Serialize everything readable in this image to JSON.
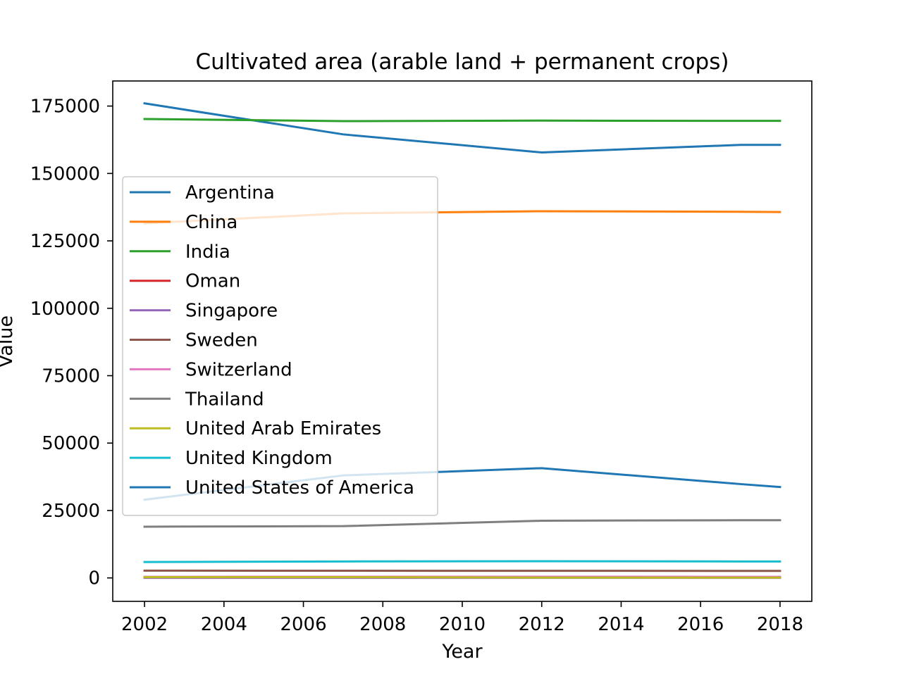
{
  "chart_data": {
    "type": "line",
    "title": "Cultivated area (arable land + permanent crops)",
    "xlabel": "Year",
    "ylabel": "Value",
    "xlim": [
      2001.2,
      2018.8
    ],
    "ylim": [
      -8700,
      184300
    ],
    "xticks": [
      2002,
      2004,
      2006,
      2008,
      2010,
      2012,
      2014,
      2016,
      2018
    ],
    "yticks": [
      0,
      25000,
      50000,
      75000,
      100000,
      125000,
      150000,
      175000
    ],
    "x": [
      2002,
      2007,
      2012,
      2017,
      2018
    ],
    "grid": false,
    "legend_position": "center-left",
    "series": [
      {
        "name": "Argentina",
        "color": "#1f77b4",
        "values": [
          176000,
          164500,
          157800,
          160600,
          160600
        ]
      },
      {
        "name": "China",
        "color": "#ff7f0e",
        "values": [
          131500,
          135200,
          136000,
          135800,
          135700
        ]
      },
      {
        "name": "India",
        "color": "#2ca02c",
        "values": [
          170200,
          169400,
          169600,
          169500,
          169500
        ]
      },
      {
        "name": "Oman",
        "color": "#d62728",
        "values": [
          80,
          80,
          90,
          90,
          90
        ]
      },
      {
        "name": "Singapore",
        "color": "#9467bd",
        "values": [
          1,
          1,
          1,
          1,
          1
        ]
      },
      {
        "name": "Sweden",
        "color": "#8c564b",
        "values": [
          2700,
          2650,
          2630,
          2600,
          2600
        ]
      },
      {
        "name": "Switzerland",
        "color": "#e377c2",
        "values": [
          420,
          430,
          430,
          420,
          420
        ]
      },
      {
        "name": "Thailand",
        "color": "#7f7f7f",
        "values": [
          19000,
          19200,
          21200,
          21400,
          21400
        ]
      },
      {
        "name": "United Arab Emirates",
        "color": "#bcbd22",
        "values": [
          270,
          290,
          120,
          120,
          120
        ]
      },
      {
        "name": "United Kingdom",
        "color": "#17becf",
        "values": [
          5900,
          6100,
          6200,
          6100,
          6100
        ]
      },
      {
        "name": "United States of America",
        "color": "#1f77b4",
        "values": [
          29000,
          38000,
          40700,
          34800,
          33700
        ]
      }
    ]
  }
}
